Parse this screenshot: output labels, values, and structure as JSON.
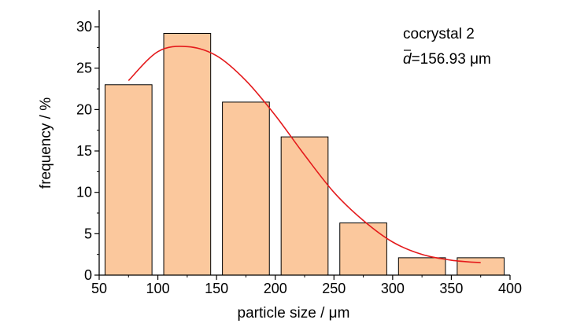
{
  "chart_data": {
    "type": "bar",
    "title": "",
    "xlabel": "particle size / μm",
    "ylabel": "frequency / %",
    "xlim": [
      50,
      400
    ],
    "ylim": [
      0,
      32
    ],
    "xticks": [
      50,
      100,
      150,
      200,
      250,
      300,
      350,
      400
    ],
    "yticks": [
      0,
      5,
      10,
      15,
      20,
      25,
      30
    ],
    "grid": false,
    "bins": [
      {
        "start": 55,
        "end": 95,
        "value": 23
      },
      {
        "start": 105,
        "end": 145,
        "value": 29.2
      },
      {
        "start": 155,
        "end": 195,
        "value": 20.9
      },
      {
        "start": 205,
        "end": 245,
        "value": 16.7
      },
      {
        "start": 255,
        "end": 295,
        "value": 6.3
      },
      {
        "start": 305,
        "end": 345,
        "value": 2.1
      },
      {
        "start": 355,
        "end": 395,
        "value": 2.1
      }
    ],
    "fit_curve": {
      "x": [
        75,
        100,
        125,
        150,
        175,
        200,
        225,
        250,
        275,
        300,
        325,
        350,
        375
      ],
      "y": [
        23.5,
        27,
        27.6,
        26.5,
        23.5,
        19.3,
        14.5,
        10.0,
        6.6,
        4.0,
        2.5,
        1.8,
        1.5
      ]
    },
    "colors": {
      "bar_fill": "#fbc89d",
      "bar_stroke": "#000000",
      "curve": "#e41a1c"
    },
    "annotation": {
      "sample": "cocrystal 2",
      "mean_symbol": "d",
      "mean_value": "=156.93 μm"
    },
    "annotation_position": "top-right"
  }
}
